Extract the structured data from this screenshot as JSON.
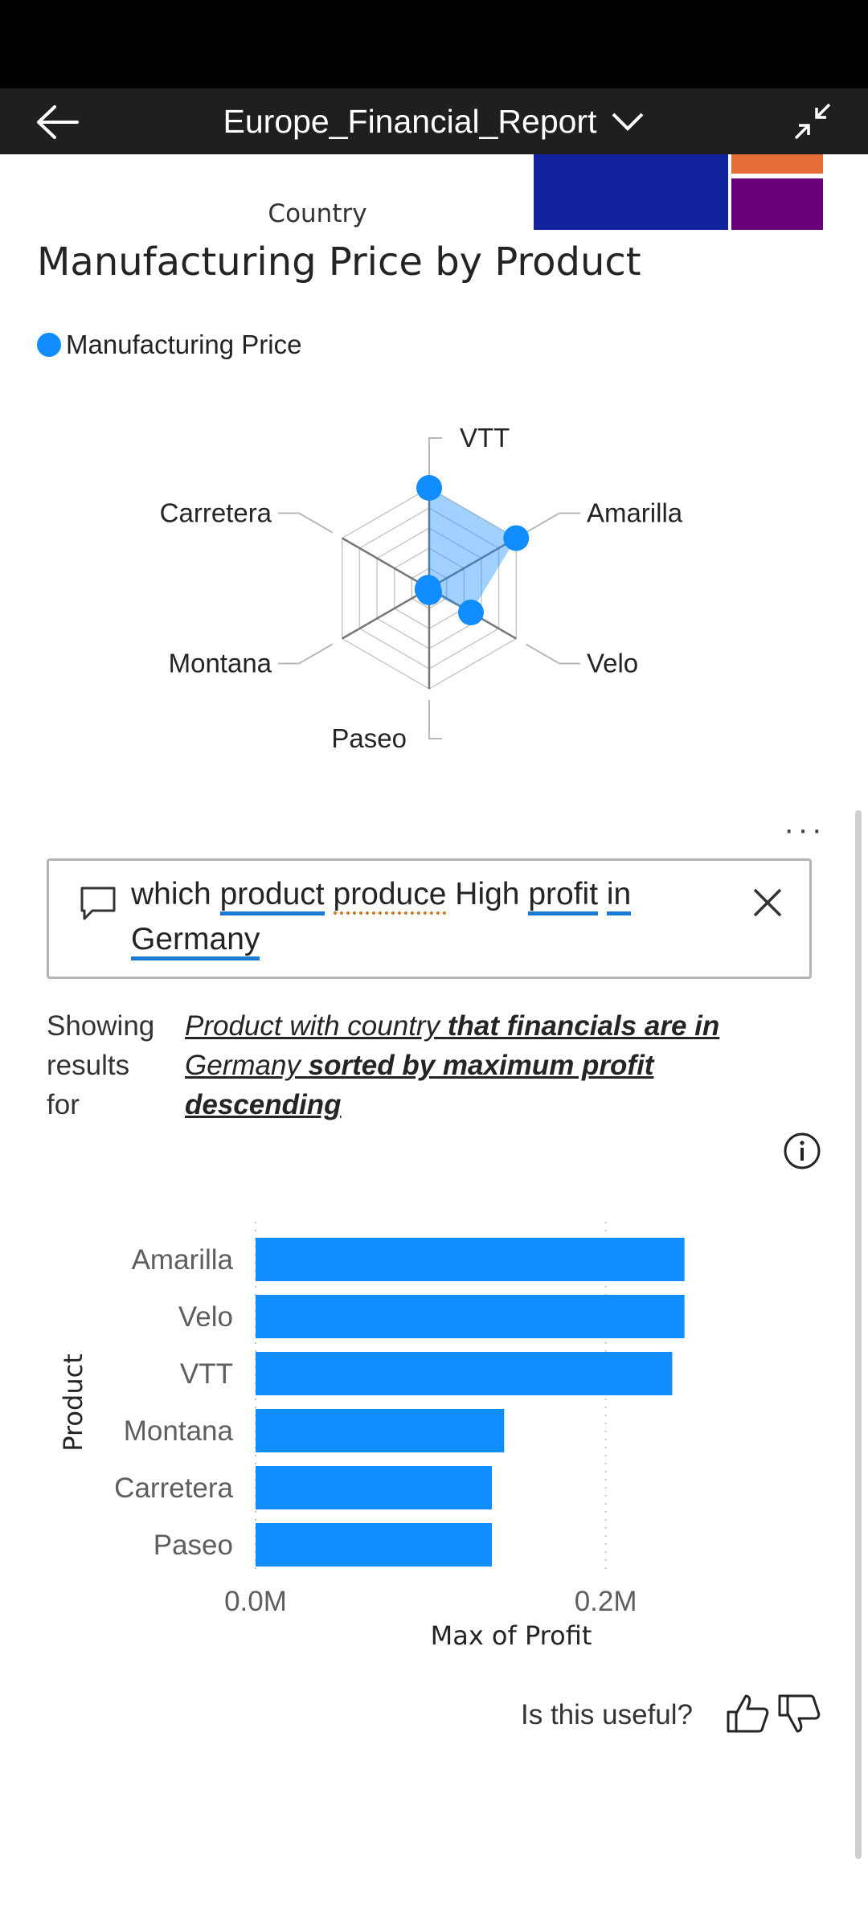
{
  "header": {
    "title": "Europe_Financial_Report"
  },
  "previous_visual": {
    "axis_label": "Country",
    "tile_colors": [
      "#12239E",
      "#E66C37",
      "#6B007B"
    ]
  },
  "radar_visual": {
    "title": "Manufacturing Price by Product",
    "legend_label": "Manufacturing Price",
    "series_color": "#118DFF",
    "axes": [
      "VTT",
      "Amarilla",
      "Velo",
      "Paseo",
      "Montana",
      "Carretera"
    ],
    "values": [
      250,
      260,
      120,
      10,
      5,
      3
    ],
    "max": 250
  },
  "qa": {
    "query_words": [
      {
        "text": "which",
        "style": "none"
      },
      {
        "text": "product",
        "style": "blue"
      },
      {
        "text": "produce",
        "style": "orange"
      },
      {
        "text": "High",
        "style": "none"
      },
      {
        "text": "profit",
        "style": "blue"
      },
      {
        "text": "in",
        "style": "blue"
      },
      {
        "text": "Germany",
        "style": "blue"
      }
    ],
    "showing_label": "Showing results for",
    "restatement": [
      {
        "text": "Product with country ",
        "bold": false
      },
      {
        "text": "that financials are in ",
        "bold": true
      },
      {
        "text": "Germany ",
        "bold": false
      },
      {
        "text": "sorted by maximum profit descending",
        "bold": true
      }
    ]
  },
  "chart_data": {
    "type": "bar",
    "orientation": "horizontal",
    "categories": [
      "Amarilla",
      "Velo",
      "VTT",
      "Montana",
      "Carretera",
      "Paseo"
    ],
    "values": [
      0.245,
      0.245,
      0.238,
      0.142,
      0.135,
      0.135
    ],
    "ylabel": "Product",
    "xlabel": "Max of Profit",
    "x_ticks": [
      "0.0M",
      "0.2M"
    ],
    "x_tick_values": [
      0,
      0.2
    ],
    "xlim": [
      0,
      0.32
    ],
    "bar_color": "#118DFF",
    "grid": true
  },
  "feedback": {
    "prompt": "Is this useful?"
  }
}
